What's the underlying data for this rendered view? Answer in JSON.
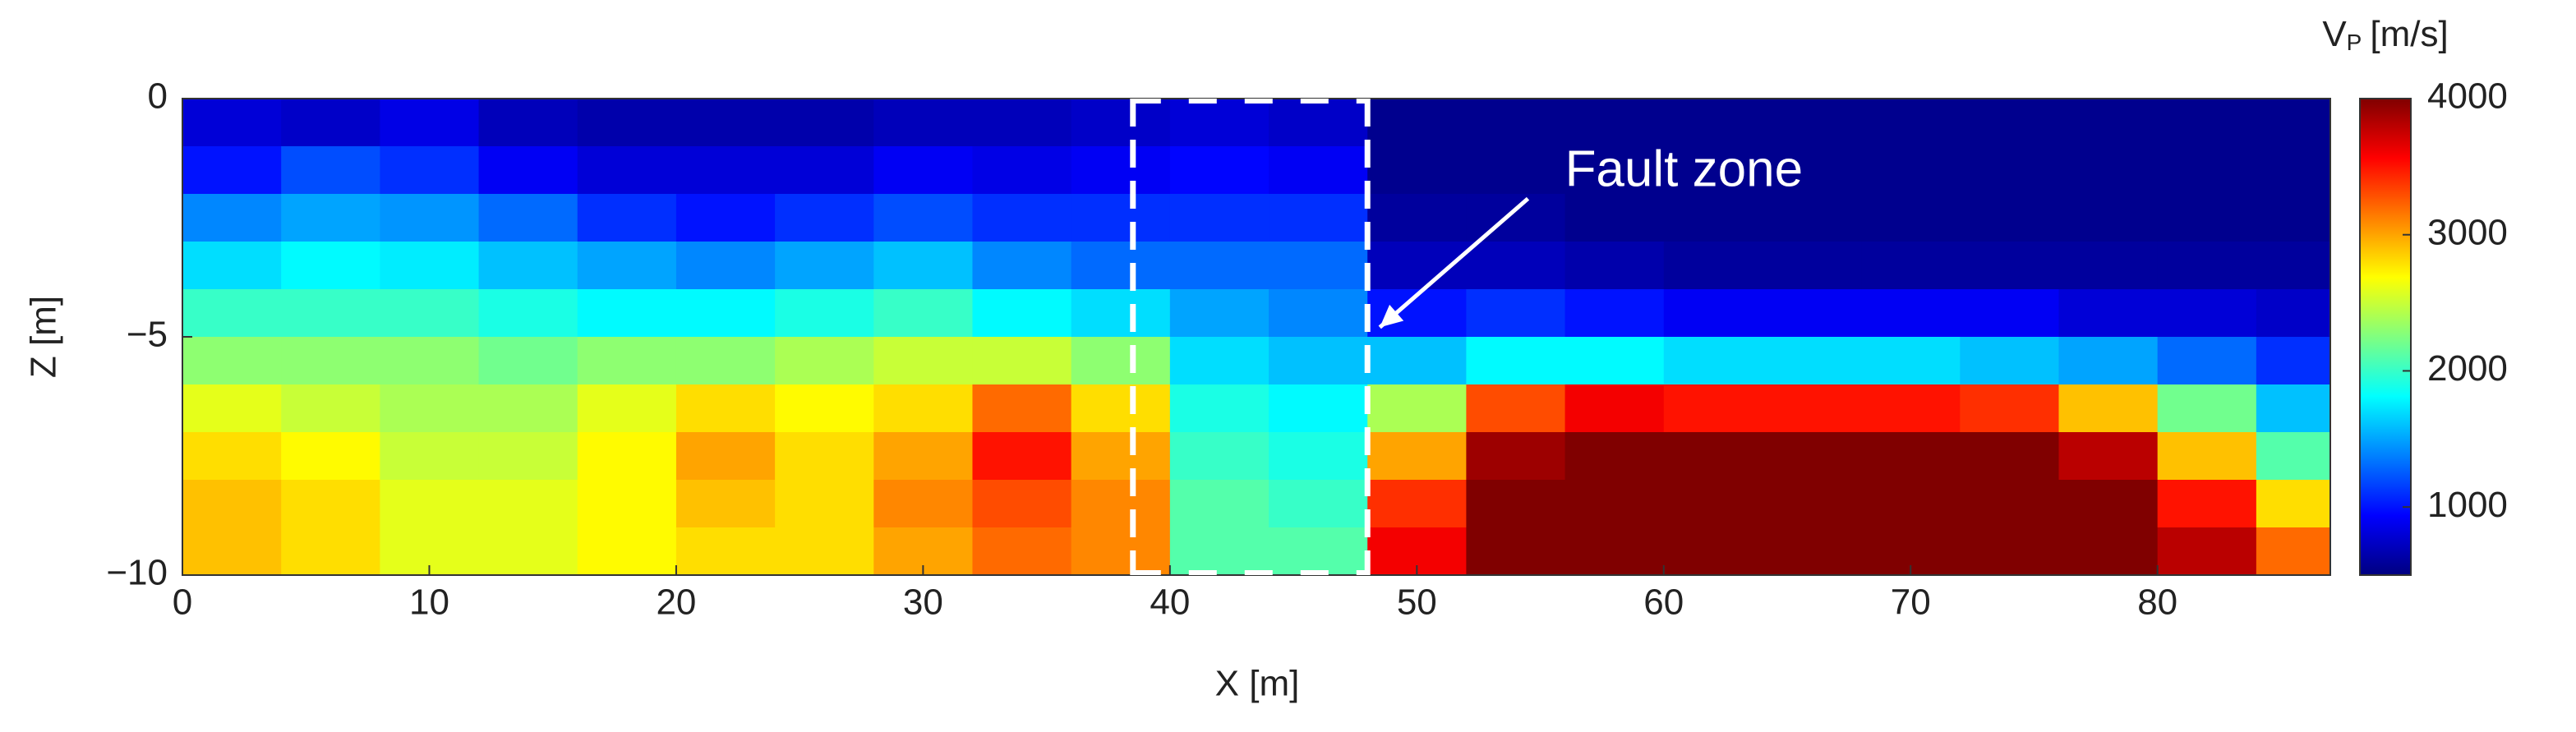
{
  "chart_data": {
    "type": "heatmap",
    "xlabel": "X [m]",
    "ylabel": "Z [m]",
    "xlim": [
      0,
      87
    ],
    "ylim": [
      -10,
      0
    ],
    "xticks": [
      0,
      10,
      20,
      30,
      40,
      50,
      60,
      70,
      80
    ],
    "yticks": [
      0,
      {
        "value": -5,
        "label": "−5"
      },
      {
        "value": -10,
        "label": "−10"
      }
    ],
    "colormap": "jet",
    "x": [
      2,
      6,
      10,
      14,
      18,
      22,
      26,
      30,
      34,
      38,
      42,
      46,
      50,
      54,
      58,
      62,
      66,
      70,
      74,
      78,
      82,
      86
    ],
    "y": [
      -0.5,
      -1.5,
      -2.5,
      -3.5,
      -4.5,
      -5.5,
      -6.5,
      -7.5,
      -8.5,
      -9.5
    ],
    "values": [
      [
        800,
        750,
        850,
        700,
        650,
        650,
        650,
        700,
        700,
        750,
        800,
        750,
        550,
        550,
        550,
        550,
        550,
        550,
        550,
        550,
        550,
        550
      ],
      [
        1000,
        1200,
        1100,
        900,
        800,
        800,
        800,
        900,
        850,
        900,
        950,
        900,
        550,
        550,
        550,
        550,
        550,
        550,
        550,
        550,
        550,
        550
      ],
      [
        1400,
        1500,
        1450,
        1300,
        1100,
        1000,
        1100,
        1200,
        1100,
        1100,
        1100,
        1100,
        600,
        600,
        550,
        550,
        550,
        550,
        550,
        550,
        550,
        550
      ],
      [
        1700,
        1800,
        1750,
        1600,
        1500,
        1400,
        1500,
        1600,
        1400,
        1300,
        1300,
        1300,
        700,
        700,
        650,
        600,
        600,
        600,
        600,
        600,
        600,
        600
      ],
      [
        2000,
        2000,
        2000,
        1900,
        1800,
        1800,
        1900,
        2000,
        1800,
        1700,
        1500,
        1400,
        1000,
        1100,
        1000,
        900,
        900,
        900,
        900,
        800,
        800,
        750
      ],
      [
        2300,
        2300,
        2300,
        2200,
        2300,
        2300,
        2400,
        2500,
        2500,
        2300,
        1700,
        1600,
        1600,
        1800,
        1800,
        1700,
        1700,
        1700,
        1600,
        1500,
        1300,
        1100
      ],
      [
        2600,
        2500,
        2400,
        2400,
        2600,
        2800,
        2700,
        2800,
        3200,
        2800,
        1900,
        1800,
        2400,
        3300,
        3600,
        3500,
        3500,
        3500,
        3400,
        2900,
        2200,
        1600
      ],
      [
        2800,
        2700,
        2500,
        2500,
        2700,
        3000,
        2800,
        3000,
        3500,
        3000,
        2000,
        1900,
        3000,
        3900,
        4000,
        4000,
        4000,
        4000,
        4000,
        3800,
        2900,
        2100
      ],
      [
        2900,
        2800,
        2600,
        2600,
        2700,
        2900,
        2800,
        3100,
        3300,
        3100,
        2100,
        2000,
        3400,
        4000,
        4000,
        4000,
        4000,
        4000,
        4000,
        4000,
        3500,
        2800
      ],
      [
        2900,
        2800,
        2600,
        2600,
        2700,
        2800,
        2800,
        3000,
        3200,
        3100,
        2100,
        2100,
        3600,
        4000,
        4000,
        4000,
        4000,
        4000,
        4000,
        4000,
        3800,
        3200
      ]
    ],
    "colorbar": {
      "label": {
        "main": "V",
        "sub": "P",
        "unit": "[m/s]"
      },
      "lim": [
        500,
        4000
      ],
      "ticks": [
        1000,
        2000,
        3000,
        4000
      ]
    },
    "fault_zone": {
      "x": [
        38.5,
        48
      ]
    },
    "annotation": {
      "text": "Fault zone",
      "xy": [
        48.5,
        -4.8
      ],
      "xytext": [
        54.5,
        -2.1
      ],
      "textpos": [
        56,
        -1.55
      ]
    }
  }
}
